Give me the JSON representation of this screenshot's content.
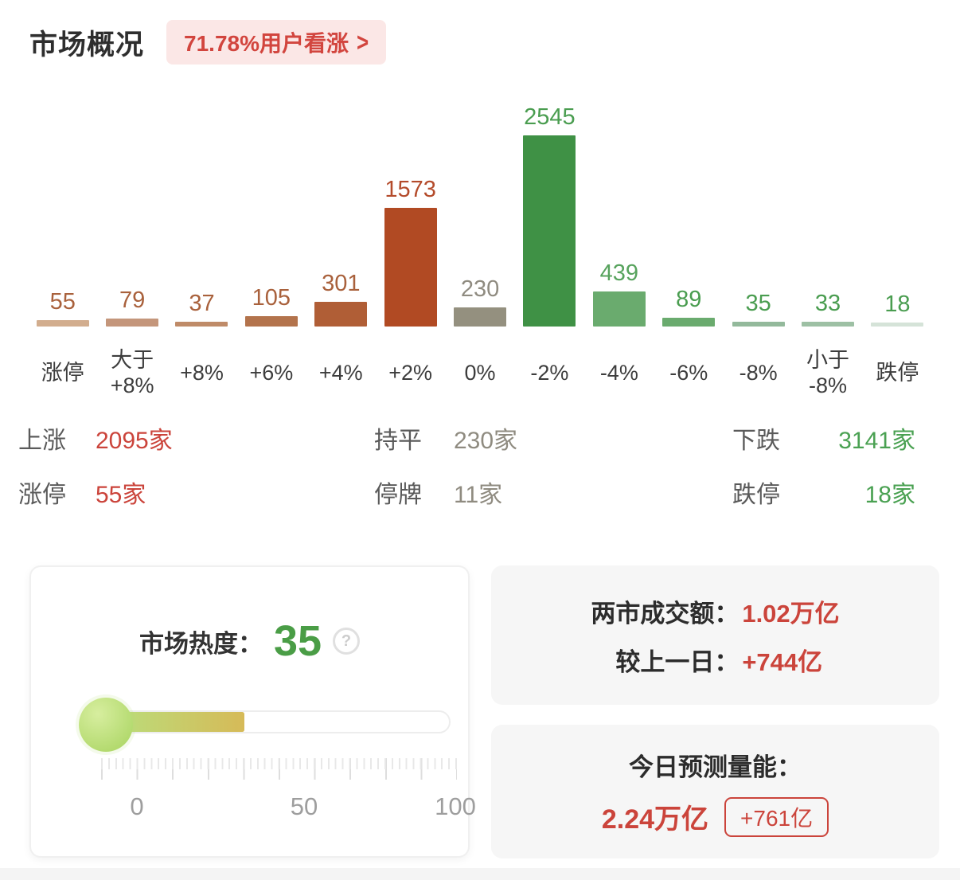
{
  "header": {
    "title": "市场概况",
    "badge_label": "71.78%用户看涨",
    "chevron": ">"
  },
  "chart_data": {
    "type": "bar",
    "categories": [
      "涨停",
      "大于\n+8%",
      "+8%",
      "+6%",
      "+4%",
      "+2%",
      "0%",
      "-2%",
      "-4%",
      "-6%",
      "-8%",
      "小于\n-8%",
      "跌停"
    ],
    "values": [
      55,
      79,
      37,
      105,
      301,
      1573,
      230,
      2545,
      439,
      89,
      35,
      33,
      18
    ],
    "ylim": [
      0,
      2545
    ],
    "grid": false,
    "bar_colors": [
      "#d2ad8e",
      "#c4967b",
      "#bf8b68",
      "#b3734c",
      "#b05e36",
      "#b14a23",
      "#94907f",
      "#3f9145",
      "#6aab6e",
      "#6aab6e",
      "#93b99b",
      "#9dc0a4",
      "#d5e3d8"
    ],
    "label_colors": [
      "#a9613c",
      "#a9613c",
      "#a9613c",
      "#a9613c",
      "#a9613c",
      "#b44b2b",
      "#8f8b80",
      "#4a9d50",
      "#57a35d",
      "#4a9d50",
      "#4a9d50",
      "#4a9d50",
      "#4a9d50"
    ]
  },
  "summary": {
    "columns": [
      {
        "rows": [
          {
            "label": "上涨",
            "value": "2095家"
          },
          {
            "label": "涨停",
            "value": "55家"
          }
        ]
      },
      {
        "rows": [
          {
            "label": "持平",
            "value": "230家"
          },
          {
            "label": "停牌",
            "value": "11家"
          }
        ]
      },
      {
        "rows": [
          {
            "label": "下跌",
            "value": "3141家"
          },
          {
            "label": "跌停",
            "value": "18家"
          }
        ]
      }
    ]
  },
  "heat": {
    "title": "市场热度：",
    "value": "35",
    "value_percent": 35,
    "help_icon": "?",
    "scale_ticks": [
      "0",
      "50",
      "100"
    ]
  },
  "turnover": {
    "rows": [
      {
        "label": "两市成交额：",
        "value": "1.02万亿"
      },
      {
        "label": "较上一日：",
        "value": "+744亿"
      }
    ]
  },
  "forecast": {
    "title": "今日预测量能：",
    "value": "2.24万亿",
    "badge": "+761亿"
  },
  "colors": {
    "red": "#cb443b",
    "green": "#4aa152",
    "gray_value": "#8f8b80",
    "badge_bg": "#fbe7e6",
    "badge_text": "#d2453e",
    "heat_green": "#4a9d46"
  }
}
